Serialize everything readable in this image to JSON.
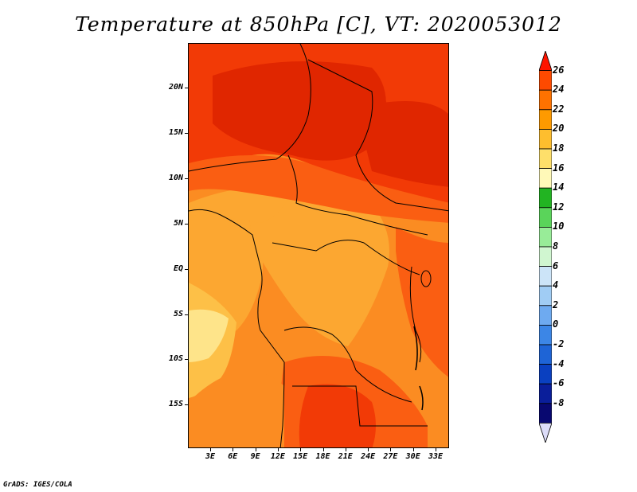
{
  "title": "Temperature at 850hPa [C], VT: 2020053012",
  "footer": "GrADS: IGES/COLA",
  "axes": {
    "y_ticks": [
      "20N",
      "15N",
      "10N",
      "5N",
      "EQ",
      "5S",
      "10S",
      "15S"
    ],
    "x_ticks": [
      "3E",
      "6E",
      "9E",
      "12E",
      "15E",
      "18E",
      "21E",
      "24E",
      "27E",
      "30E",
      "33E"
    ]
  },
  "colorbar": {
    "labels": [
      "26",
      "24",
      "22",
      "20",
      "18",
      "16",
      "14",
      "12",
      "10",
      "8",
      "6",
      "4",
      "2",
      "0",
      "-2",
      "-4",
      "-6",
      "-8"
    ],
    "colors": [
      "#fe1400",
      "#fe4a00",
      "#fe7200",
      "#fe9a00",
      "#febe2e",
      "#fedf6a",
      "#fff9b8",
      "#22b422",
      "#5ad45a",
      "#98ec98",
      "#d0f6d0",
      "#cce4f8",
      "#a0ccf4",
      "#6eaaf0",
      "#3c86e6",
      "#1e64d6",
      "#0a40c0",
      "#0a1e9a",
      "#080870",
      "#dcdcf8"
    ],
    "map_shades": {
      "max": "#e02600",
      "very_hot": "#f23a06",
      "hot": "#fa5e12",
      "warm": "#fb8c22",
      "mild": "#fca731",
      "cool": "#fdc047",
      "coolest": "#fee48a"
    }
  },
  "map": {
    "lon_range": [
      0,
      35
    ],
    "lat_range": [
      -20,
      25
    ],
    "projection": "latlon",
    "region": "Central Africa"
  }
}
